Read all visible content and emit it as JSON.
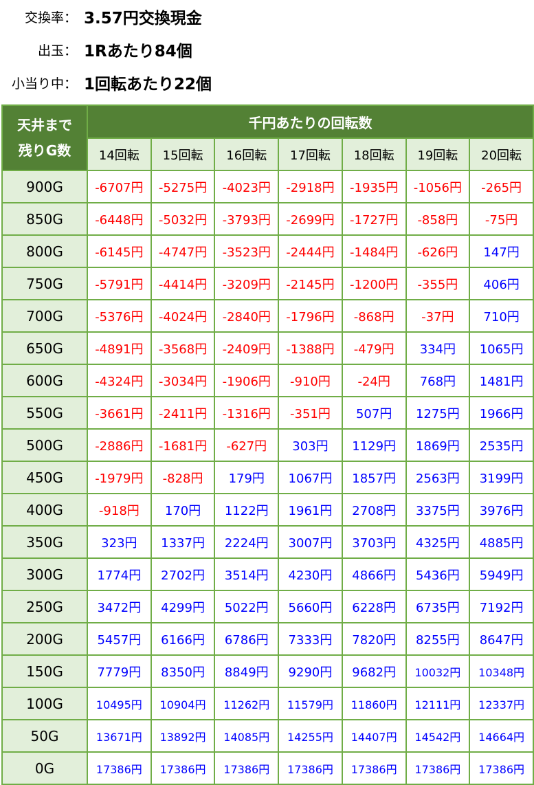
{
  "info": [
    {
      "label": "交換率：",
      "value": "3.57円交換現金"
    },
    {
      "label": "出玉：",
      "value": "1Rあたり84個"
    },
    {
      "label": "小当り中：",
      "value": "1回転あたり22個"
    }
  ],
  "table": {
    "corner_label_line1": "天井まで",
    "corner_label_line2": "残りG数",
    "group_header": "千円あたりの回転数",
    "columns": [
      "14回転",
      "15回転",
      "16回転",
      "17回転",
      "18回転",
      "19回転",
      "20回転"
    ],
    "colors": {
      "negative": "#ff0000",
      "positive": "#0000ff",
      "header": "#538135",
      "subheader": "#e2efda",
      "border": "#70ad47"
    },
    "rows": [
      {
        "label": "900G",
        "values": [
          "-6707円",
          "-5275円",
          "-4023円",
          "-2918円",
          "-1935円",
          "-1056円",
          "-265円"
        ]
      },
      {
        "label": "850G",
        "values": [
          "-6448円",
          "-5032円",
          "-3793円",
          "-2699円",
          "-1727円",
          "-858円",
          "-75円"
        ]
      },
      {
        "label": "800G",
        "values": [
          "-6145円",
          "-4747円",
          "-3523円",
          "-2444円",
          "-1484円",
          "-626円",
          "147円"
        ]
      },
      {
        "label": "750G",
        "values": [
          "-5791円",
          "-4414円",
          "-3209円",
          "-2145円",
          "-1200円",
          "-355円",
          "406円"
        ]
      },
      {
        "label": "700G",
        "values": [
          "-5376円",
          "-4024円",
          "-2840円",
          "-1796円",
          "-868円",
          "-37円",
          "710円"
        ]
      },
      {
        "label": "650G",
        "values": [
          "-4891円",
          "-3568円",
          "-2409円",
          "-1388円",
          "-479円",
          "334円",
          "1065円"
        ]
      },
      {
        "label": "600G",
        "values": [
          "-4324円",
          "-3034円",
          "-1906円",
          "-910円",
          "-24円",
          "768円",
          "1481円"
        ]
      },
      {
        "label": "550G",
        "values": [
          "-3661円",
          "-2411円",
          "-1316円",
          "-351円",
          "507円",
          "1275円",
          "1966円"
        ]
      },
      {
        "label": "500G",
        "values": [
          "-2886円",
          "-1681円",
          "-627円",
          "303円",
          "1129円",
          "1869円",
          "2535円"
        ]
      },
      {
        "label": "450G",
        "values": [
          "-1979円",
          "-828円",
          "179円",
          "1067円",
          "1857円",
          "2563円",
          "3199円"
        ]
      },
      {
        "label": "400G",
        "values": [
          "-918円",
          "170円",
          "1122円",
          "1961円",
          "2708円",
          "3375円",
          "3976円"
        ]
      },
      {
        "label": "350G",
        "values": [
          "323円",
          "1337円",
          "2224円",
          "3007円",
          "3703円",
          "4325円",
          "4885円"
        ]
      },
      {
        "label": "300G",
        "values": [
          "1774円",
          "2702円",
          "3514円",
          "4230円",
          "4866円",
          "5436円",
          "5949円"
        ]
      },
      {
        "label": "250G",
        "values": [
          "3472円",
          "4299円",
          "5022円",
          "5660円",
          "6228円",
          "6735円",
          "7192円"
        ]
      },
      {
        "label": "200G",
        "values": [
          "5457円",
          "6166円",
          "6786円",
          "7333円",
          "7820円",
          "8255円",
          "8647円"
        ]
      },
      {
        "label": "150G",
        "values": [
          "7779円",
          "8350円",
          "8849円",
          "9290円",
          "9682円",
          "10032円",
          "10348円"
        ]
      },
      {
        "label": "100G",
        "values": [
          "10495円",
          "10904円",
          "11262円",
          "11579円",
          "11860円",
          "12111円",
          "12337円"
        ]
      },
      {
        "label": "50G",
        "values": [
          "13671円",
          "13892円",
          "14085円",
          "14255円",
          "14407円",
          "14542円",
          "14664円"
        ]
      },
      {
        "label": "0G",
        "values": [
          "17386円",
          "17386円",
          "17386円",
          "17386円",
          "17386円",
          "17386円",
          "17386円"
        ]
      }
    ]
  }
}
